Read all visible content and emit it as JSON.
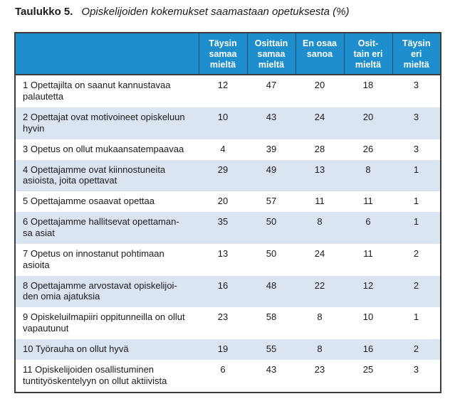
{
  "caption": {
    "label": "Taulukko 5.",
    "title": "Opiskelijoiden kokemukset saamastaan opetuksesta (%)"
  },
  "table": {
    "header": [
      "Täysin\nsamaa\nmieltä",
      "Osittain\nsamaa\nmieltä",
      "En osaa\nsanoa",
      "Osit-\ntain eri\nmieltä",
      "Täysin\neri\nmieltä"
    ],
    "rows": [
      {
        "label": "1 Opettajilta on saanut kannustavaa\npalautetta",
        "values": [
          12,
          47,
          20,
          18,
          3
        ]
      },
      {
        "label": "2 Opettajat ovat motivoineet opiskeluun\nhyvin",
        "values": [
          10,
          43,
          24,
          20,
          3
        ]
      },
      {
        "label": "3 Opetus on ollut mukaansatempaavaa",
        "values": [
          4,
          39,
          28,
          26,
          3
        ]
      },
      {
        "label": "4 Opettajamme ovat kiinnostuneita\nasioista, joita opettavat",
        "values": [
          29,
          49,
          13,
          8,
          1
        ]
      },
      {
        "label": "5 Opettajamme osaavat opettaa",
        "values": [
          20,
          57,
          11,
          11,
          1
        ]
      },
      {
        "label": "6 Opettajamme hallitsevat opettaman-\nsa asiat",
        "values": [
          35,
          50,
          8,
          6,
          1
        ]
      },
      {
        "label": "7 Opetus on innostanut pohtimaan\nasioita",
        "values": [
          13,
          50,
          24,
          11,
          2
        ]
      },
      {
        "label": "8 Opettajamme arvostavat opiskelijoi-\nden omia ajatuksia",
        "values": [
          16,
          48,
          22,
          12,
          2
        ]
      },
      {
        "label": "9 Opiskeluilmapiiri oppitunneilla on ollut\nvapautunut",
        "values": [
          23,
          58,
          8,
          10,
          1
        ]
      },
      {
        "label": "10 Työrauha on ollut hyvä",
        "values": [
          19,
          55,
          8,
          16,
          2
        ]
      },
      {
        "label": "11 Opiskelijoiden osallistuminen\ntuntityöskentelyyn on ollut aktiivista",
        "values": [
          6,
          43,
          23,
          25,
          3
        ]
      }
    ]
  },
  "colors": {
    "header_bg": "#1e8ecd",
    "row_alt_bg": "#dbe5f1",
    "border": "#3d3d3d"
  }
}
